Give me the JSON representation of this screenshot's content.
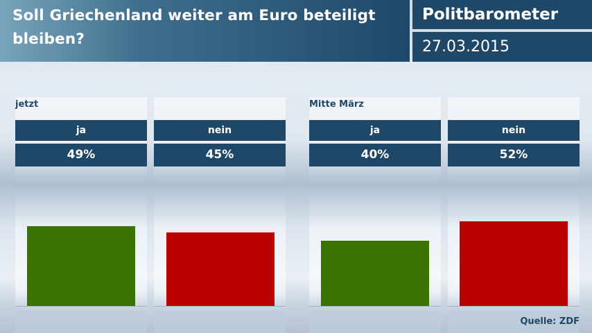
{
  "header": {
    "question": "Soll Griechenland weiter am Euro beteiligt bleiben?",
    "brand": "Politbarometer",
    "date": "27.03.2015"
  },
  "source": "Quelle: ZDF",
  "colors": {
    "ja": "#3a7300",
    "nein": "#bb0000",
    "header": "#1f4868"
  },
  "chart_data": {
    "type": "bar",
    "title": "Soll Griechenland weiter am Euro beteiligt bleiben?",
    "groups": [
      {
        "label": "jetzt",
        "bars": [
          {
            "category": "ja",
            "value": 49,
            "display": "49%"
          },
          {
            "category": "nein",
            "value": 45,
            "display": "45%"
          }
        ]
      },
      {
        "label": "Mitte März",
        "bars": [
          {
            "category": "ja",
            "value": 40,
            "display": "40%"
          },
          {
            "category": "nein",
            "value": 52,
            "display": "52%"
          }
        ]
      }
    ]
  }
}
